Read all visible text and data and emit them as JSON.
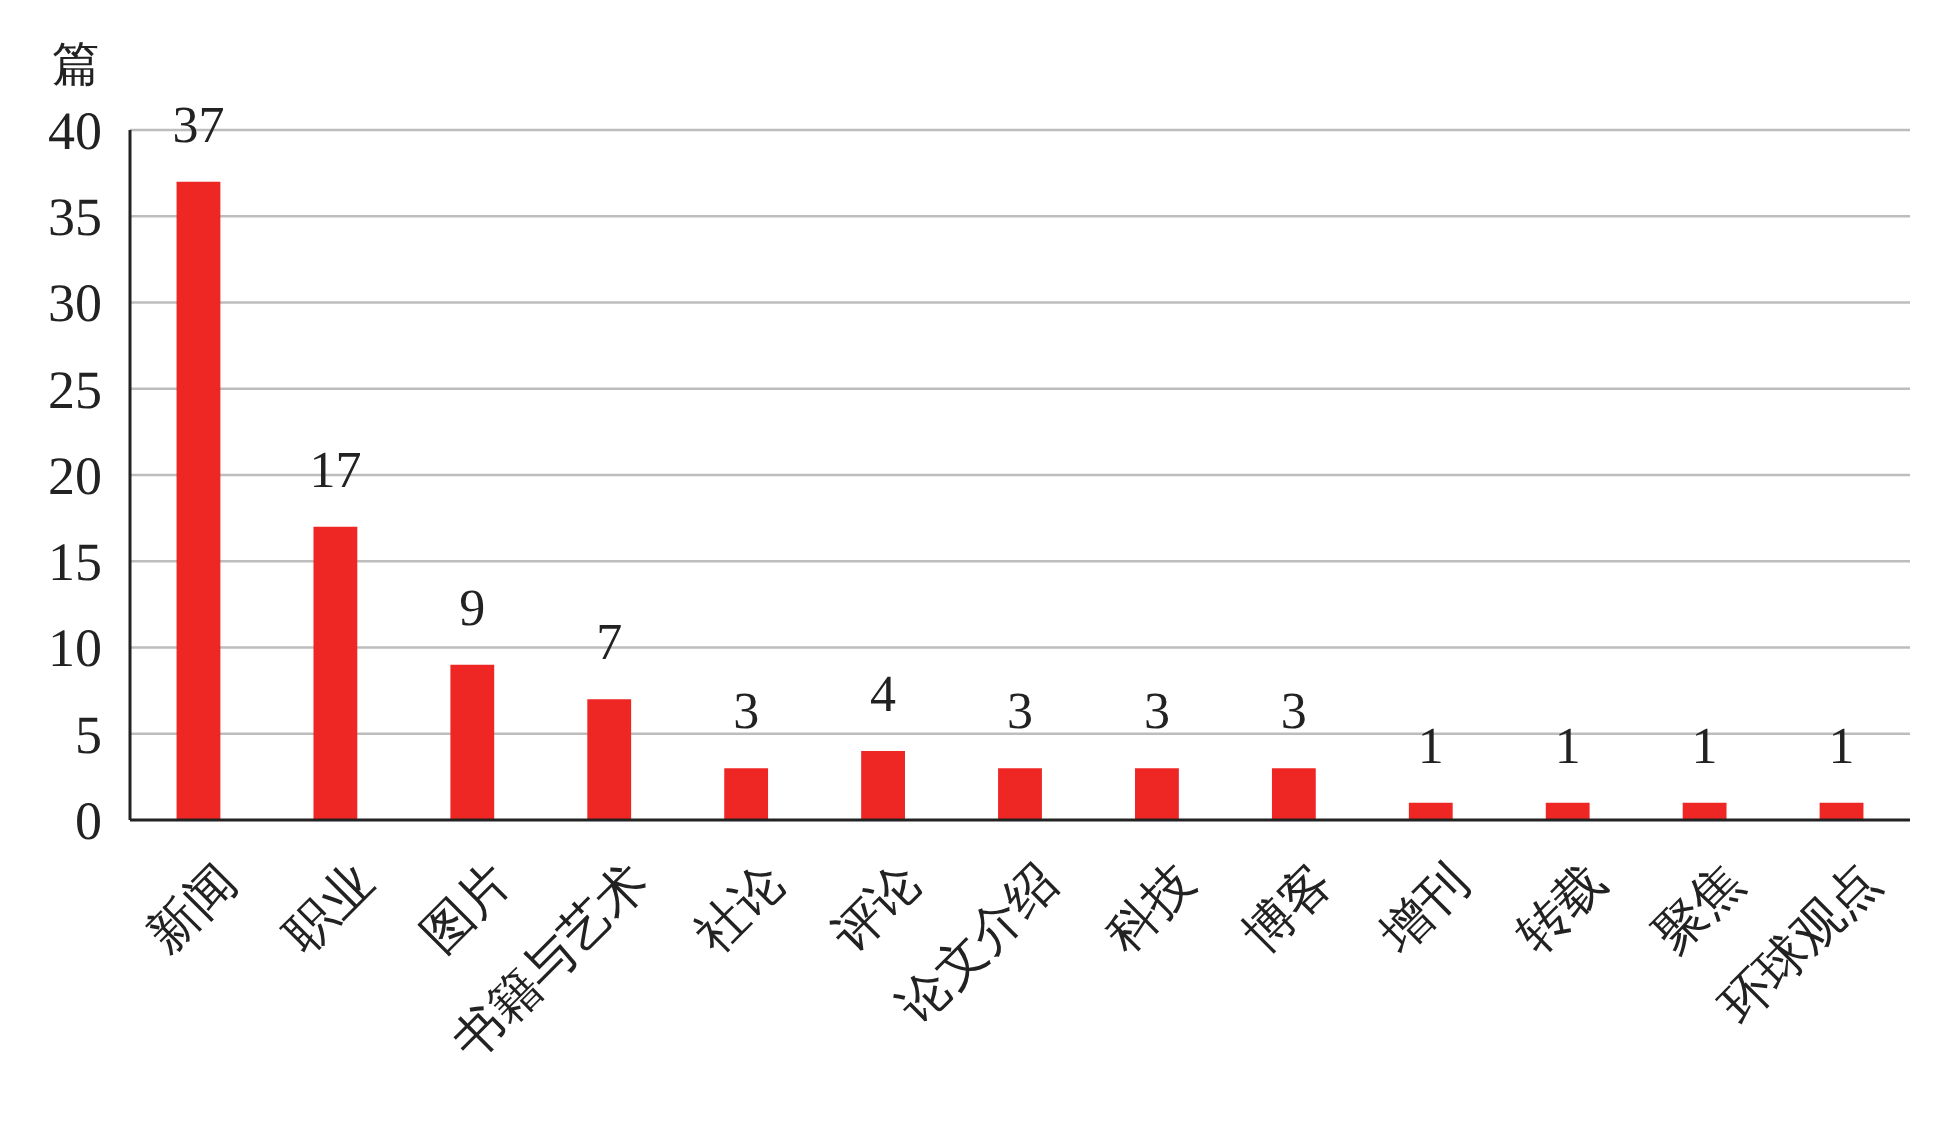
{
  "chart_data": {
    "type": "bar",
    "ylabel": "篇",
    "categories": [
      "新闻",
      "职业",
      "图片",
      "书籍与艺术",
      "社论",
      "评论",
      "论文介绍",
      "科技",
      "博客",
      "增刊",
      "转载",
      "聚焦",
      "环球观点"
    ],
    "values": [
      37,
      17,
      9,
      7,
      3,
      4,
      3,
      3,
      3,
      1,
      1,
      1,
      1
    ],
    "color": "#ee2724",
    "ylim": [
      0,
      40
    ],
    "yticks": [
      0,
      5,
      10,
      15,
      20,
      25,
      30,
      35,
      40
    ],
    "grid": "y",
    "data_labels": true
  }
}
